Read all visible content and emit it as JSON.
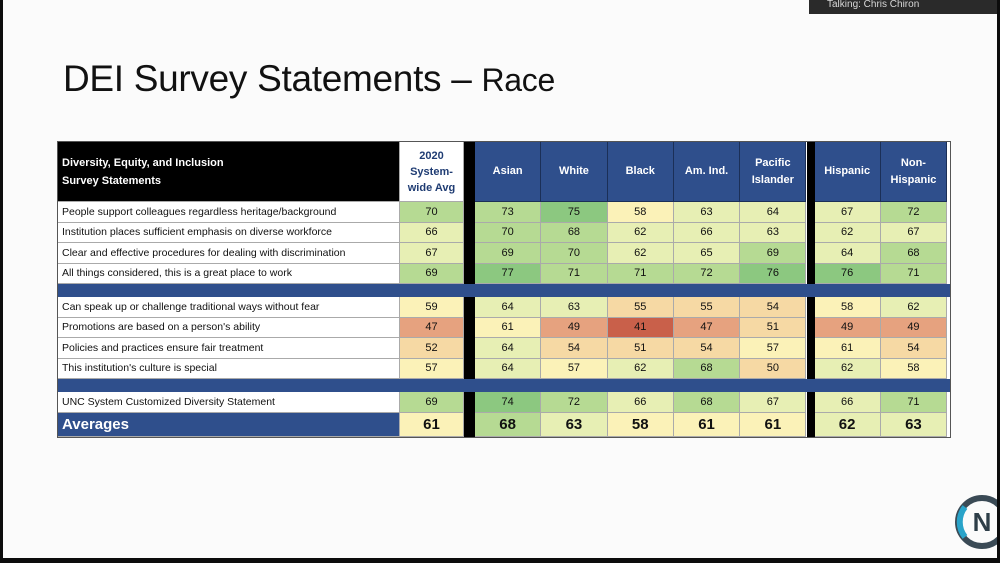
{
  "talking": "Talking: Chris Chiron",
  "title": {
    "main": "DEI Survey Statements – ",
    "sub": "Race"
  },
  "table": {
    "header_label": [
      "Diversity, Equity, and Inclusion",
      "Survey Statements"
    ],
    "avg_header": [
      "2020",
      "System-",
      "wide Avg"
    ],
    "groups": [
      [
        "Asian"
      ],
      [
        "White"
      ],
      [
        "Black"
      ],
      [
        "Am. Ind."
      ],
      [
        "Pacific",
        "Islander"
      ],
      [
        "Hispanic"
      ],
      [
        "Non-",
        "Hispanic"
      ]
    ],
    "sections": [
      [
        {
          "label": "People support colleagues regardless heritage/background",
          "avg": 70,
          "values": [
            73,
            75,
            58,
            63,
            64,
            67,
            72
          ]
        },
        {
          "label": "Institution places sufficient emphasis on diverse workforce",
          "avg": 66,
          "values": [
            70,
            68,
            62,
            66,
            63,
            62,
            67
          ]
        },
        {
          "label": "Clear and effective procedures for dealing with discrimination",
          "avg": 67,
          "values": [
            69,
            70,
            62,
            65,
            69,
            64,
            68
          ]
        },
        {
          "label": "All things considered, this is a great place to work",
          "avg": 69,
          "values": [
            77,
            71,
            71,
            72,
            76,
            76,
            71
          ]
        }
      ],
      [
        {
          "label": "Can speak up or challenge traditional ways without fear",
          "avg": 59,
          "values": [
            64,
            63,
            55,
            55,
            54,
            58,
            62
          ]
        },
        {
          "label": "Promotions are based on a person's ability",
          "avg": 47,
          "values": [
            61,
            49,
            41,
            47,
            51,
            49,
            49
          ]
        },
        {
          "label": "Policies and practices ensure fair treatment",
          "avg": 52,
          "values": [
            64,
            54,
            51,
            54,
            57,
            61,
            54
          ]
        },
        {
          "label": "This institution's culture is special",
          "avg": 57,
          "values": [
            64,
            57,
            62,
            68,
            50,
            62,
            58
          ]
        }
      ],
      [
        {
          "label": "UNC System Customized Diversity Statement",
          "avg": 69,
          "values": [
            74,
            72,
            66,
            68,
            67,
            66,
            71
          ]
        }
      ]
    ],
    "averages": {
      "label": "Averages",
      "avg": 61,
      "values": [
        68,
        63,
        58,
        61,
        61,
        62,
        63
      ]
    }
  },
  "colors": {
    "header_blue": "#2f4f8c",
    "scale": [
      "#c9604a",
      "#e6a27f",
      "#f6d9a4",
      "#fbf2b8",
      "#e7efb4",
      "#b6da93",
      "#8cc880"
    ]
  },
  "logo": {
    "text": "N",
    "icon": "n-circle-logo-icon"
  }
}
